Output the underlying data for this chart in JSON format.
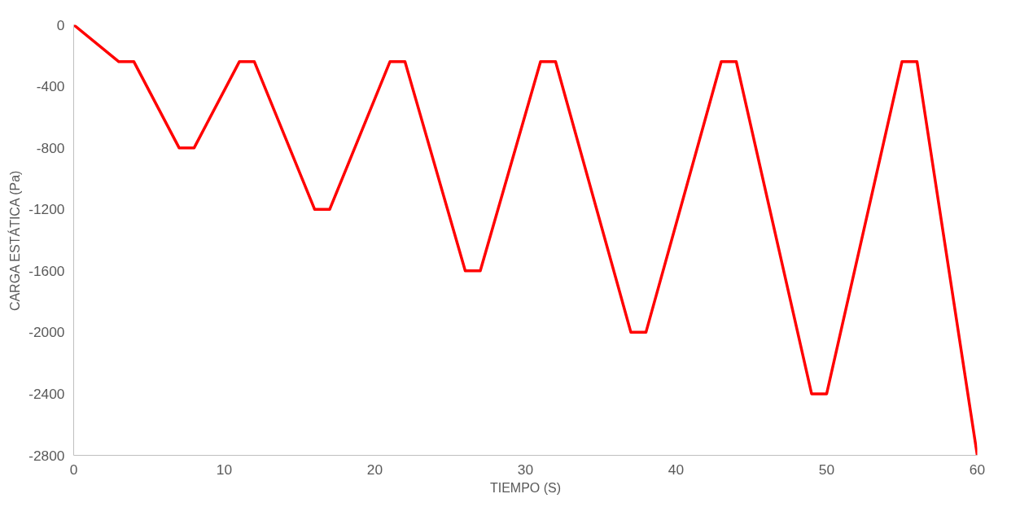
{
  "chart_data": {
    "type": "line",
    "xlabel": "TIEMPO (S)",
    "ylabel": "CARGA ESTÁTICA (Pa)",
    "x": [
      0,
      3,
      4,
      7,
      8,
      11,
      12,
      16,
      17,
      21,
      22,
      26,
      27,
      31,
      32,
      37,
      38,
      43,
      44,
      49,
      50,
      55,
      56,
      60
    ],
    "series": [
      {
        "color": "#ff0000",
        "values": [
          0,
          -240,
          -240,
          -800,
          -800,
          -240,
          -240,
          -1200,
          -1200,
          -240,
          -240,
          -1600,
          -1600,
          -240,
          -240,
          -2000,
          -2000,
          -240,
          -240,
          -2400,
          -2400,
          -240,
          -240,
          -2800
        ]
      }
    ],
    "xlim": [
      0,
      60
    ],
    "ylim": [
      -2800,
      0
    ],
    "xticks": [
      0,
      10,
      20,
      30,
      40,
      50,
      60
    ],
    "yticks": [
      0,
      -400,
      -800,
      -1200,
      -1600,
      -2000,
      -2400,
      -2800
    ],
    "grid": false,
    "marker": "none",
    "line_style": "solid"
  }
}
